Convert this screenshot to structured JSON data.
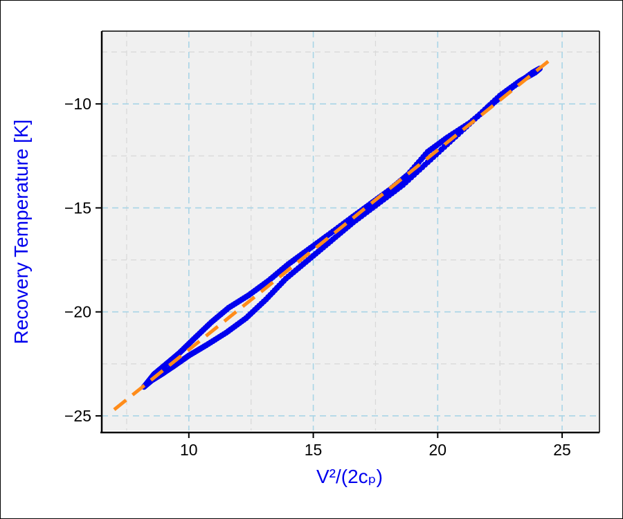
{
  "chart_data": {
    "type": "scatter",
    "xlabel": "V²/(2cₚ)",
    "ylabel": "Recovery Temperature [K]",
    "xlim": [
      6.5,
      26.5
    ],
    "ylim": [
      -25.7,
      -6.5
    ],
    "x_ticks": [
      10,
      15,
      20,
      25
    ],
    "y_ticks": [
      -10,
      -15,
      -20,
      -25
    ],
    "x_tick_labels": [
      "10",
      "15",
      "20",
      "25"
    ],
    "y_tick_labels": [
      "−10",
      "−15",
      "−20",
      "−25"
    ],
    "grid": true,
    "minor_grid": true,
    "colors": {
      "points": "#0000ee",
      "fit": "#ff8c1a",
      "axis_label": "#0000ee",
      "plot_bg": "#f0f0f0",
      "grid_major": "#a8d4e6",
      "grid_minor": "#d9d9d9"
    },
    "series": [
      {
        "kind": "points",
        "color": "#0000ee",
        "x": [
          8.2,
          8.5,
          8.9,
          9.4,
          10.0,
          10.7,
          11.5,
          12.3,
          13.1,
          13.9,
          14.8,
          15.7,
          16.6,
          17.6,
          18.6,
          19.6,
          20.6,
          21.6,
          22.5,
          23.3,
          23.9,
          24.1,
          23.8,
          23.0,
          22.2,
          21.3,
          20.4,
          19.6,
          18.8,
          18.1,
          17.3,
          16.5,
          15.6,
          14.8,
          14.0,
          13.2,
          12.4,
          11.6,
          10.9,
          10.2,
          9.6,
          9.1,
          8.6,
          8.2
        ],
        "y": [
          -23.6,
          -23.3,
          -23.0,
          -22.6,
          -22.1,
          -21.6,
          -21.0,
          -20.3,
          -19.4,
          -18.4,
          -17.5,
          -16.6,
          -15.7,
          -14.8,
          -13.9,
          -12.8,
          -11.7,
          -10.6,
          -9.6,
          -8.9,
          -8.5,
          -8.3,
          -8.5,
          -9.2,
          -10.0,
          -10.9,
          -11.6,
          -12.3,
          -13.4,
          -14.1,
          -14.8,
          -15.5,
          -16.3,
          -17.0,
          -17.7,
          -18.5,
          -19.2,
          -19.8,
          -20.5,
          -21.3,
          -22.0,
          -22.5,
          -23.0,
          -23.6
        ]
      },
      {
        "kind": "fit",
        "color": "#ff8c1a",
        "x": [
          7.0,
          24.6
        ],
        "y": [
          -24.7,
          -7.8
        ]
      }
    ]
  }
}
